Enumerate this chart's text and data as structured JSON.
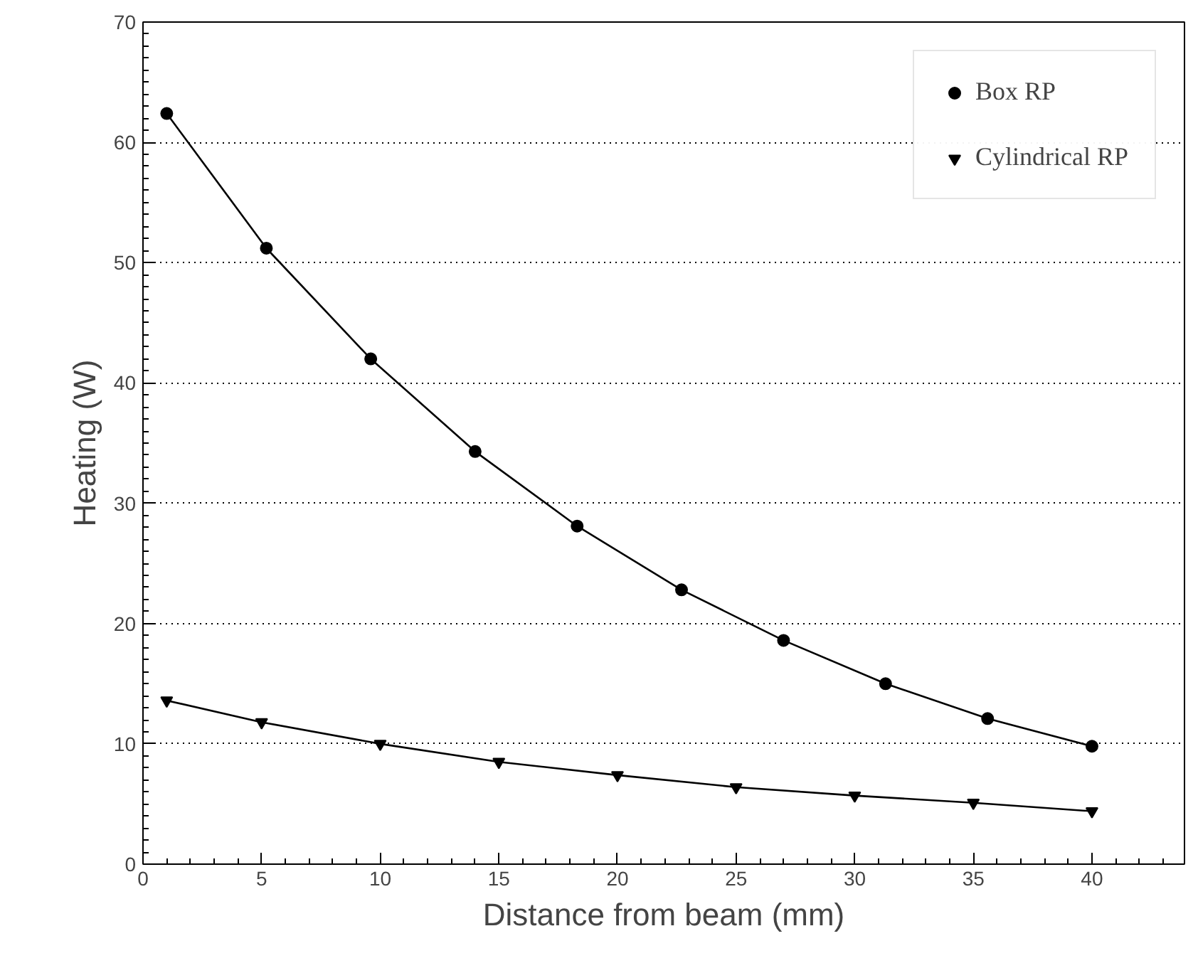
{
  "chart_data": {
    "type": "line",
    "xlabel": "Distance from beam (mm)",
    "ylabel": "Heating (W)",
    "xlim": [
      0,
      43.9
    ],
    "ylim": [
      0,
      70
    ],
    "xticks": [
      0,
      5,
      10,
      15,
      20,
      25,
      30,
      35,
      40
    ],
    "yticks": [
      0,
      10,
      20,
      30,
      40,
      50,
      60,
      70
    ],
    "grid": "y",
    "legend": "top right",
    "line_style": "solid",
    "series": [
      {
        "name": "Box RP",
        "color": "#000000",
        "marker": "circle",
        "x": [
          1,
          5.2,
          9.6,
          14,
          18.3,
          22.7,
          27,
          31.3,
          35.6,
          40
        ],
        "values": [
          62.4,
          51.2,
          42,
          34.3,
          28.1,
          22.8,
          18.6,
          15,
          12.1,
          9.8
        ]
      },
      {
        "name": "Cylindrical RP",
        "color": "#000000",
        "marker": "triangle",
        "x": [
          1,
          5,
          10,
          15,
          20,
          25,
          30,
          35,
          40
        ],
        "values": [
          13.6,
          11.8,
          10,
          8.5,
          7.4,
          6.4,
          5.7,
          5.1,
          4.4
        ]
      }
    ]
  }
}
